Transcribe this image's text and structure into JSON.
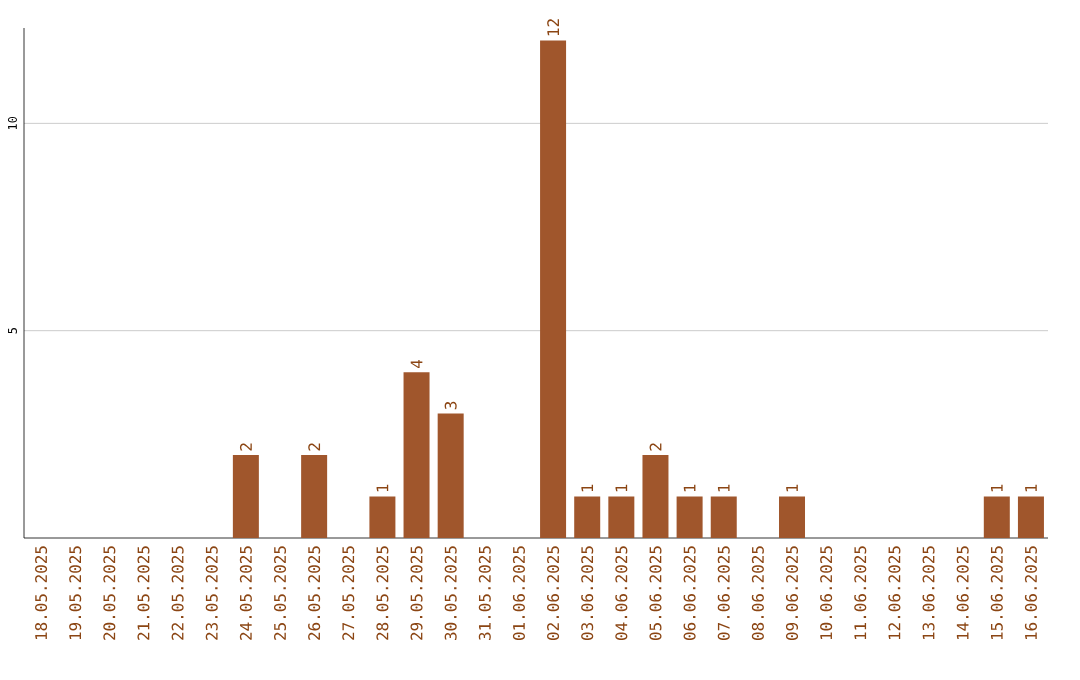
{
  "chart_data": {
    "type": "bar",
    "categories": [
      "18.05.2025",
      "19.05.2025",
      "20.05.2025",
      "21.05.2025",
      "22.05.2025",
      "23.05.2025",
      "24.05.2025",
      "25.05.2025",
      "26.05.2025",
      "27.05.2025",
      "28.05.2025",
      "29.05.2025",
      "30.05.2025",
      "31.05.2025",
      "01.06.2025",
      "02.06.2025",
      "03.06.2025",
      "04.06.2025",
      "05.06.2025",
      "06.06.2025",
      "07.06.2025",
      "08.06.2025",
      "09.06.2025",
      "10.06.2025",
      "11.06.2025",
      "12.06.2025",
      "13.06.2025",
      "14.06.2025",
      "15.06.2025",
      "16.06.2025"
    ],
    "values": [
      0,
      0,
      0,
      0,
      0,
      0,
      2,
      0,
      2,
      0,
      1,
      4,
      3,
      0,
      0,
      12,
      1,
      1,
      2,
      1,
      1,
      0,
      1,
      0,
      0,
      0,
      0,
      0,
      1,
      1
    ],
    "value_labels": [
      null,
      null,
      null,
      null,
      null,
      null,
      "2",
      null,
      "2",
      null,
      "1",
      "4",
      "3",
      null,
      null,
      "12",
      "1",
      "1",
      "2",
      "1",
      "1",
      null,
      "1",
      null,
      null,
      null,
      null,
      null,
      "1",
      "1"
    ],
    "color": "#a0562c",
    "ylim": [
      0,
      12.3
    ],
    "yticks": [
      5,
      10
    ],
    "grid": "y"
  }
}
